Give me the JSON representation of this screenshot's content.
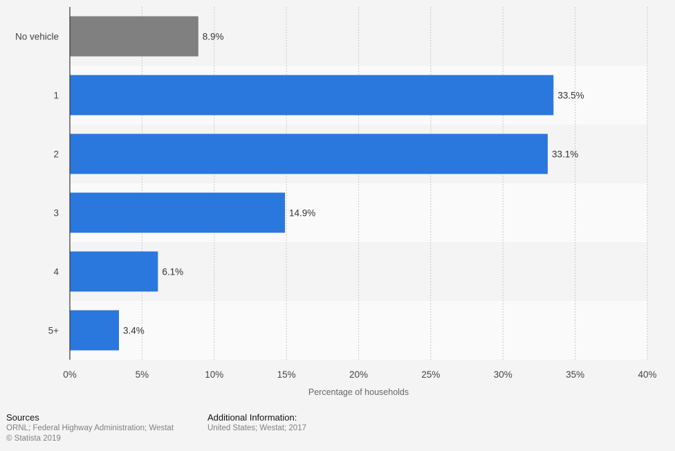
{
  "chart_data": {
    "type": "bar",
    "orientation": "horizontal",
    "categories": [
      "No vehicle",
      "1",
      "2",
      "3",
      "4",
      "5+"
    ],
    "values": [
      8.9,
      33.5,
      33.1,
      14.9,
      6.1,
      3.4
    ],
    "value_labels": [
      "8.9%",
      "33.5%",
      "33.1%",
      "14.9%",
      "6.1%",
      "3.4%"
    ],
    "bar_colors": [
      "#808080",
      "#2a77dd",
      "#2a77dd",
      "#2a77dd",
      "#2a77dd",
      "#2a77dd"
    ],
    "xlabel": "Percentage of households",
    "ylabel": "",
    "title": "",
    "xlim": [
      0,
      40
    ],
    "x_ticks": [
      0,
      5,
      10,
      15,
      20,
      25,
      30,
      35,
      40
    ],
    "x_tick_labels": [
      "0%",
      "5%",
      "10%",
      "15%",
      "20%",
      "25%",
      "30%",
      "35%",
      "40%"
    ],
    "grid": "vertical dashed",
    "legend": "none"
  },
  "colors": {
    "background": "#f4f4f4",
    "band_light": "#fafafa",
    "primary_bar": "#2a77dd",
    "highlight_bar": "#808080",
    "grid": "#c8c8c8",
    "axis": "#333333"
  },
  "footer": {
    "sources_heading": "Sources",
    "sources_line": "ORNL; Federal Highway Administration; Westat",
    "copyright": "© Statista 2019",
    "additional_heading": "Additional Information:",
    "additional_line": "United States; Westat; 2017"
  }
}
